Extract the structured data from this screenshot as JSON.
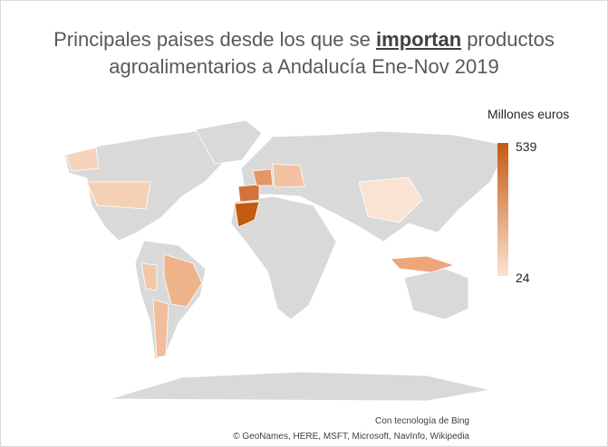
{
  "chart_data": {
    "type": "choropleth",
    "title": {
      "before": "Principales paises desde los que se ",
      "emphasis": "importan",
      "after": " productos agroalimentarios a Andalucía Ene-Nov 2019"
    },
    "legend": {
      "title": "Millones euros",
      "max": 539,
      "min": 24,
      "colors": [
        "#c55a11",
        "#fae3d3"
      ]
    },
    "credits": [
      "Con tecnología de Bing",
      "© GeoNames, HERE, MSFT, Microsoft, NavInfo, Wikipedia"
    ]
  }
}
